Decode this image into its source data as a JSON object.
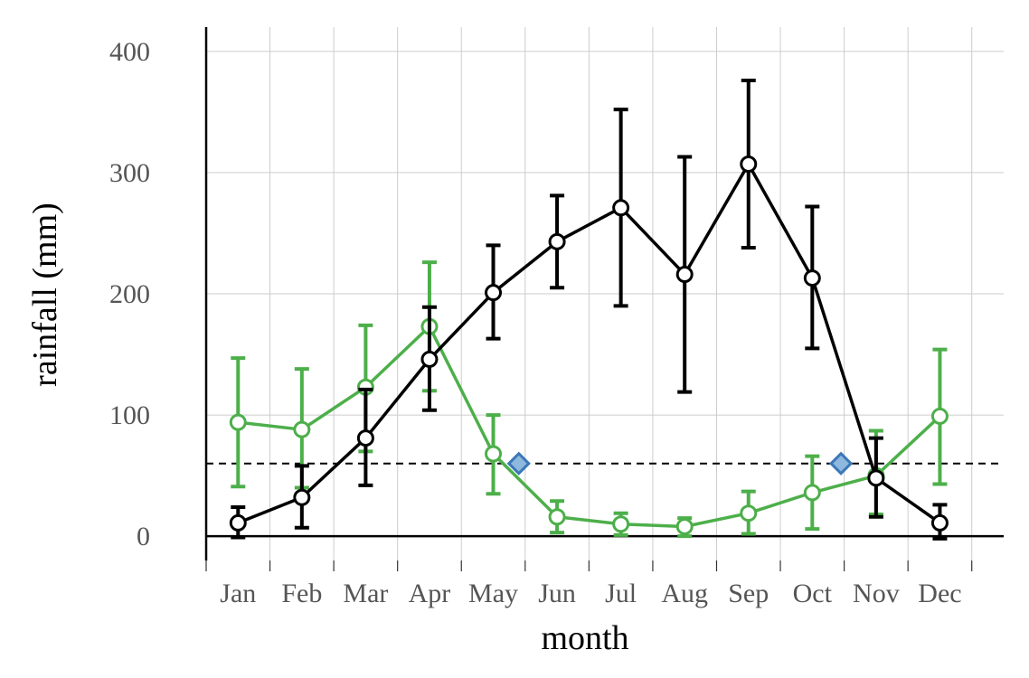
{
  "chart_data": {
    "type": "line",
    "xlabel": "month",
    "ylabel": "rainfall (mm)",
    "ylim": [
      -20,
      420
    ],
    "yticks": [
      0,
      100,
      200,
      300,
      400
    ],
    "categories": [
      "Jan",
      "Feb",
      "Mar",
      "Apr",
      "May",
      "Jun",
      "Jul",
      "Aug",
      "Sep",
      "Oct",
      "Nov",
      "Dec"
    ],
    "grid": true,
    "legend": "none",
    "colors": {
      "black": "#000000",
      "green": "#4daf4a",
      "marker": "#8fb8de",
      "marker_edge": "#3b78b8"
    },
    "series": [
      {
        "color": "#000000",
        "x": [
          1,
          2,
          3,
          4,
          5,
          6,
          7,
          8,
          9,
          10,
          11,
          12
        ],
        "values": [
          11,
          32,
          81,
          146,
          201,
          243,
          271,
          216,
          307,
          213,
          48,
          11
        ],
        "err_low": [
          -1,
          7,
          42,
          104,
          163,
          205,
          190,
          119,
          238,
          155,
          16,
          -2
        ],
        "err_high": [
          24,
          58,
          121,
          189,
          240,
          281,
          352,
          313,
          376,
          272,
          81,
          26
        ]
      },
      {
        "color": "#4daf4a",
        "x": [
          1,
          2,
          3,
          4,
          5,
          6,
          7,
          8,
          9,
          10,
          11,
          12
        ],
        "values": [
          94,
          88,
          123,
          173,
          68,
          16,
          10,
          8,
          19,
          36,
          50,
          99
        ],
        "err_low": [
          41,
          40,
          70,
          120,
          35,
          3,
          1,
          0,
          2,
          6,
          18,
          43
        ],
        "err_high": [
          147,
          138,
          174,
          226,
          100,
          29,
          19,
          15,
          37,
          66,
          87,
          154
        ]
      }
    ],
    "threshold": 60,
    "crossings": [
      {
        "x": 5.4,
        "y": 60
      },
      {
        "x": 10.45,
        "y": 60
      }
    ]
  }
}
